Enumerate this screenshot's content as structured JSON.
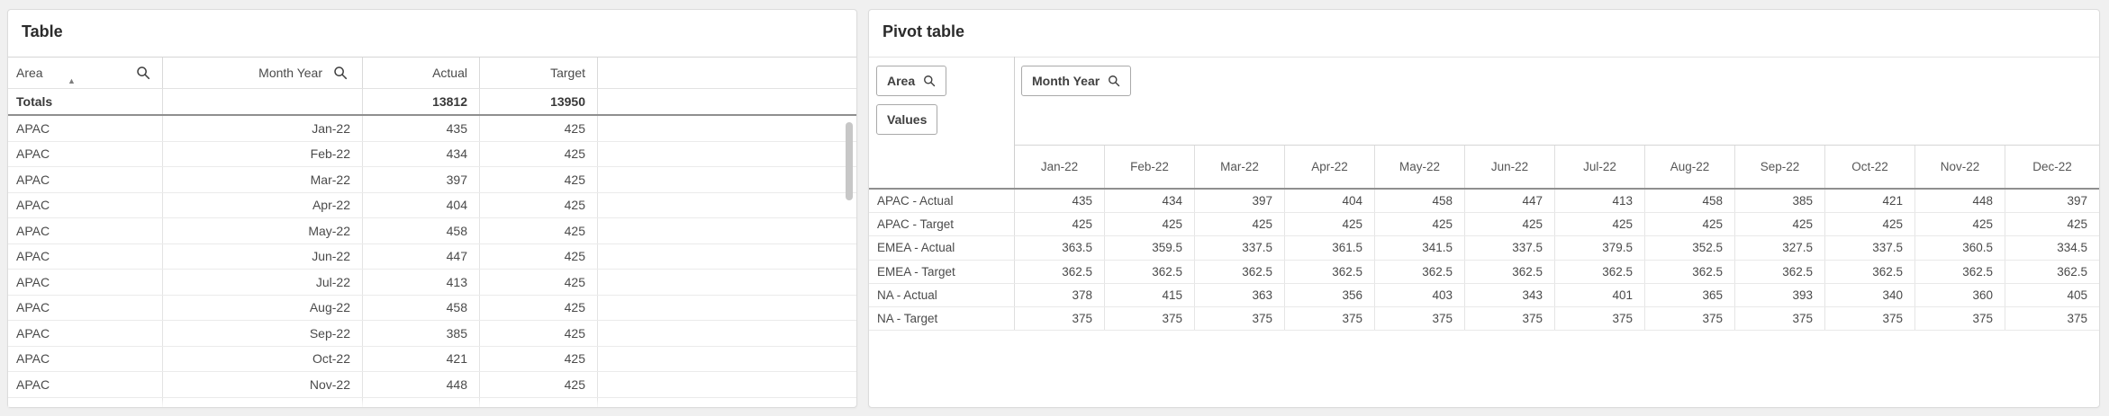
{
  "table_panel": {
    "title": "Table",
    "columns": [
      {
        "label": "Area",
        "align": "left",
        "has_search": true,
        "sort": "ascending"
      },
      {
        "label": "Month Year",
        "align": "right",
        "has_search": true
      },
      {
        "label": "Actual",
        "align": "right"
      },
      {
        "label": "Target",
        "align": "right"
      },
      {
        "label": ""
      }
    ],
    "totals": {
      "label": "Totals",
      "actual": "13812",
      "target": "13950"
    },
    "rows": [
      {
        "area": "APAC",
        "month_year": "Jan-22",
        "actual": "435",
        "target": "425"
      },
      {
        "area": "APAC",
        "month_year": "Feb-22",
        "actual": "434",
        "target": "425"
      },
      {
        "area": "APAC",
        "month_year": "Mar-22",
        "actual": "397",
        "target": "425"
      },
      {
        "area": "APAC",
        "month_year": "Apr-22",
        "actual": "404",
        "target": "425"
      },
      {
        "area": "APAC",
        "month_year": "May-22",
        "actual": "458",
        "target": "425"
      },
      {
        "area": "APAC",
        "month_year": "Jun-22",
        "actual": "447",
        "target": "425"
      },
      {
        "area": "APAC",
        "month_year": "Jul-22",
        "actual": "413",
        "target": "425"
      },
      {
        "area": "APAC",
        "month_year": "Aug-22",
        "actual": "458",
        "target": "425"
      },
      {
        "area": "APAC",
        "month_year": "Sep-22",
        "actual": "385",
        "target": "425"
      },
      {
        "area": "APAC",
        "month_year": "Oct-22",
        "actual": "421",
        "target": "425"
      },
      {
        "area": "APAC",
        "month_year": "Nov-22",
        "actual": "448",
        "target": "425"
      }
    ],
    "scrollbar_visible": true
  },
  "pivot_panel": {
    "title": "Pivot table",
    "buttons": {
      "row_dimension": "Area",
      "values": "Values",
      "column_dimension": "Month Year"
    },
    "columns": [
      "Jan-22",
      "Feb-22",
      "Mar-22",
      "Apr-22",
      "May-22",
      "Jun-22",
      "Jul-22",
      "Aug-22",
      "Sep-22",
      "Oct-22",
      "Nov-22",
      "Dec-22"
    ],
    "rows": [
      {
        "label": "APAC - Actual",
        "values": [
          "435",
          "434",
          "397",
          "404",
          "458",
          "447",
          "413",
          "458",
          "385",
          "421",
          "448",
          "397"
        ]
      },
      {
        "label": "APAC - Target",
        "values": [
          "425",
          "425",
          "425",
          "425",
          "425",
          "425",
          "425",
          "425",
          "425",
          "425",
          "425",
          "425"
        ]
      },
      {
        "label": "EMEA - Actual",
        "values": [
          "363.5",
          "359.5",
          "337.5",
          "361.5",
          "341.5",
          "337.5",
          "379.5",
          "352.5",
          "327.5",
          "337.5",
          "360.5",
          "334.5"
        ]
      },
      {
        "label": "EMEA - Target",
        "values": [
          "362.5",
          "362.5",
          "362.5",
          "362.5",
          "362.5",
          "362.5",
          "362.5",
          "362.5",
          "362.5",
          "362.5",
          "362.5",
          "362.5"
        ]
      },
      {
        "label": "NA - Actual",
        "values": [
          "378",
          "415",
          "363",
          "356",
          "403",
          "343",
          "401",
          "365",
          "393",
          "340",
          "360",
          "405"
        ]
      },
      {
        "label": "NA - Target",
        "values": [
          "375",
          "375",
          "375",
          "375",
          "375",
          "375",
          "375",
          "375",
          "375",
          "375",
          "375",
          "375"
        ]
      }
    ]
  },
  "icons": {
    "search": "magnifier",
    "sort_ascending": "triangle-up"
  },
  "colors": {
    "background": "#f0f0f0",
    "panel": "#ffffff",
    "panel_border": "#dcdcdc",
    "row_line": "#ebebeb",
    "column_line": "#d9d9d9",
    "totals_separator": "#8f8f8f",
    "text": "#4a4a4a",
    "title_text": "#2b2b2b",
    "scrollbar_thumb": "#c7c7c7"
  }
}
